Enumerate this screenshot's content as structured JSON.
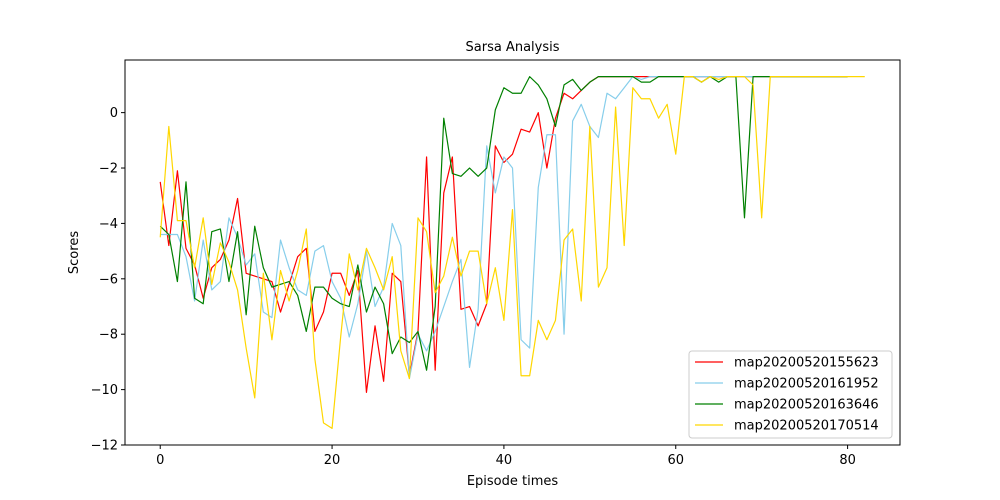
{
  "chart_data": {
    "type": "line",
    "title": "Sarsa Analysis",
    "xlabel": "Episode times",
    "ylabel": "Scores",
    "xlim": [
      -4.1,
      86.1
    ],
    "ylim": [
      -12,
      1.9
    ],
    "xticks": [
      0,
      20,
      40,
      60,
      80
    ],
    "yticks": [
      -12,
      -10,
      -8,
      -6,
      -4,
      -2,
      0
    ],
    "grid": false,
    "legend_position": "lower-right",
    "series": [
      {
        "name": "map20200520155623",
        "color": "#ff0000",
        "values": [
          -2.5,
          -4.8,
          -2.1,
          -4.9,
          -5.5,
          -6.7,
          -5.6,
          -5.3,
          -4.6,
          -3.1,
          -5.8,
          -5.9,
          -6.0,
          -6.1,
          -7.2,
          -6.2,
          -5.2,
          -4.9,
          -7.9,
          -7.2,
          -5.8,
          -5.8,
          -6.6,
          -5.7,
          -10.1,
          -7.7,
          -9.7,
          -5.8,
          -6.1,
          -9.5,
          -7.9,
          -1.6,
          -9.3,
          -2.9,
          -1.6,
          -7.1,
          -7.0,
          -7.7,
          -6.9,
          -1.2,
          -1.8,
          -1.5,
          -0.6,
          -0.7,
          0.0,
          -2.0,
          -0.2,
          0.7,
          0.5,
          0.8,
          1.1,
          1.3,
          1.3,
          1.3,
          1.3,
          1.3,
          1.3,
          1.3,
          1.3,
          1.3,
          1.3,
          1.3,
          1.3,
          1.3,
          1.3,
          1.3,
          1.3,
          1.3,
          1.3,
          1.3,
          1.3,
          1.3,
          1.3,
          1.3,
          1.3,
          1.3,
          1.3,
          1.3,
          1.3,
          1.3,
          1.3
        ]
      },
      {
        "name": "map20200520161952",
        "color": "#87ceeb",
        "values": [
          -4.4,
          -4.4,
          -4.4,
          -5.2,
          -6.8,
          -4.6,
          -6.4,
          -6.1,
          -3.8,
          -4.5,
          -5.5,
          -5.1,
          -7.2,
          -7.4,
          -4.6,
          -5.6,
          -6.4,
          -6.6,
          -5.0,
          -4.8,
          -6.1,
          -6.7,
          -8.1,
          -6.9,
          -5.0,
          -7.0,
          -6.3,
          -4.0,
          -4.8,
          -9.6,
          -8.0,
          -8.6,
          -7.9,
          -7.0,
          -6.1,
          -5.3,
          -9.2,
          -7.1,
          -1.2,
          -2.9,
          -1.6,
          -2.0,
          -8.2,
          -8.5,
          -2.7,
          -0.8,
          -0.8,
          -8.0,
          -0.3,
          0.3,
          -0.5,
          -0.9,
          0.7,
          0.5,
          0.9,
          1.3,
          1.2,
          1.3,
          1.3,
          1.3,
          1.3,
          1.3,
          1.3,
          1.3,
          1.3,
          1.3,
          1.3,
          1.3,
          1.3,
          1.3,
          1.3,
          1.3,
          1.3,
          1.3,
          1.3,
          1.3,
          1.3,
          1.3,
          1.3,
          1.3,
          1.3
        ]
      },
      {
        "name": "map20200520163646",
        "color": "#008000",
        "values": [
          -4.1,
          -4.4,
          -6.1,
          -2.5,
          -6.7,
          -6.9,
          -4.3,
          -4.2,
          -6.1,
          -4.3,
          -7.3,
          -4.1,
          -5.6,
          -6.3,
          -6.2,
          -6.1,
          -6.6,
          -7.9,
          -6.3,
          -6.3,
          -6.7,
          -6.9,
          -7.0,
          -5.5,
          -7.2,
          -6.3,
          -6.9,
          -8.7,
          -8.1,
          -8.3,
          -7.9,
          -9.3,
          -7.0,
          -0.2,
          -2.2,
          -2.3,
          -2.0,
          -2.3,
          -2.0,
          0.1,
          0.9,
          0.7,
          0.7,
          1.3,
          1.0,
          0.5,
          -0.5,
          1.0,
          1.2,
          0.8,
          1.1,
          1.3,
          1.3,
          1.3,
          1.3,
          1.3,
          1.1,
          1.1,
          1.3,
          1.3,
          1.3,
          1.3,
          1.3,
          1.1,
          1.3,
          1.1,
          1.3,
          1.3,
          -3.8,
          1.3,
          1.3,
          1.3,
          1.3,
          1.3,
          1.3,
          1.3,
          1.3,
          1.3,
          1.3,
          1.3,
          1.3
        ]
      },
      {
        "name": "map20200520170514",
        "color": "#ffd700",
        "values": [
          -4.5,
          -0.5,
          -3.9,
          -3.9,
          -5.6,
          -3.8,
          -6.2,
          -4.7,
          -5.4,
          -6.4,
          -8.5,
          -10.3,
          -5.8,
          -8.2,
          -5.7,
          -6.8,
          -5.7,
          -4.2,
          -8.9,
          -11.2,
          -11.4,
          -8.1,
          -5.1,
          -6.4,
          -4.9,
          -5.6,
          -6.4,
          -5.2,
          -8.6,
          -9.6,
          -3.8,
          -4.3,
          -6.5,
          -5.9,
          -4.5,
          -5.9,
          -5.0,
          -5.0,
          -6.9,
          -5.6,
          -7.5,
          -3.5,
          -9.5,
          -9.5,
          -7.5,
          -8.2,
          -7.5,
          -4.6,
          -4.2,
          -6.8,
          -0.5,
          -6.3,
          -5.6,
          0.2,
          -4.8,
          0.9,
          0.5,
          0.5,
          -0.2,
          0.3,
          -1.5,
          1.3,
          1.3,
          1.1,
          1.3,
          1.2,
          1.3,
          1.3,
          1.3,
          1.0,
          -3.8,
          1.3,
          1.3,
          1.3,
          1.3,
          1.3,
          1.3,
          1.3,
          1.3,
          1.3,
          1.3,
          1.3,
          1.3
        ]
      }
    ]
  }
}
